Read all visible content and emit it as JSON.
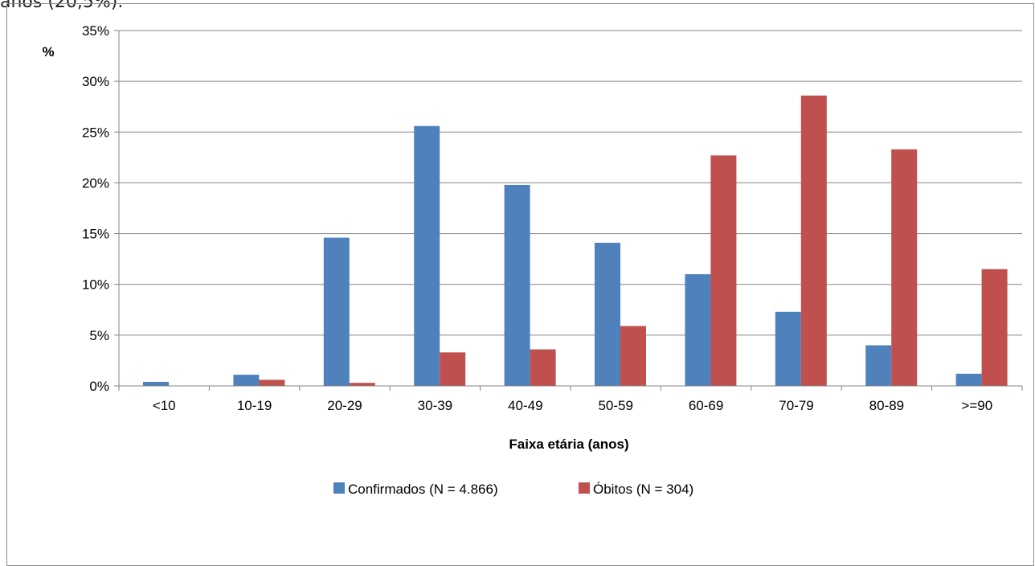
{
  "caption_fragment": "anos (20,5%).",
  "chart_data": {
    "type": "bar",
    "categories": [
      "<10",
      "10-19",
      "20-29",
      "30-39",
      "40-49",
      "50-59",
      "60-69",
      "70-79",
      "80-89",
      ">=90"
    ],
    "series": [
      {
        "name": "Confirmados (N = 4.866)",
        "color": "#4f81bd",
        "values": [
          0.4,
          1.1,
          14.6,
          25.6,
          19.8,
          14.1,
          11.0,
          7.3,
          4.0,
          1.2
        ]
      },
      {
        "name": "Óbitos (N = 304)",
        "color": "#c0504d",
        "values": [
          0.0,
          0.6,
          0.3,
          3.3,
          3.6,
          5.9,
          22.7,
          28.6,
          23.3,
          11.5
        ]
      }
    ],
    "title": "",
    "xlabel": "Faixa etária (anos)",
    "ylabel": "%",
    "ylim": [
      0,
      35
    ],
    "yticks": [
      "0%",
      "5%",
      "10%",
      "15%",
      "20%",
      "25%",
      "30%",
      "35%"
    ],
    "grid": true,
    "legend_position": "bottom"
  }
}
